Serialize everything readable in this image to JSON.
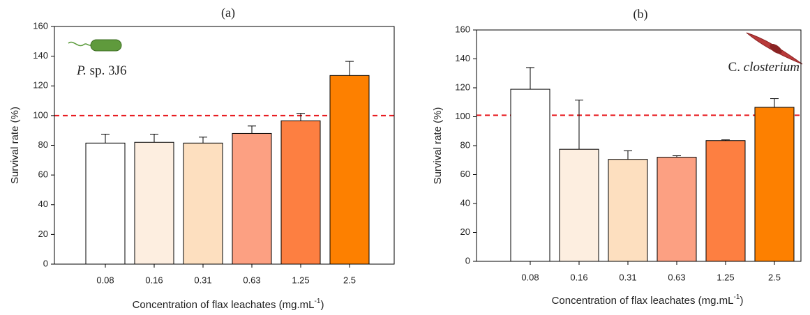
{
  "chart_data": [
    {
      "type": "bar",
      "title": "(a)",
      "annotation": [
        "P.",
        " sp. 3J6"
      ],
      "categories": [
        "0.08",
        "0.16",
        "0.31",
        "0.63",
        "1.25",
        "2.5"
      ],
      "values": [
        81.5,
        82,
        81.5,
        88,
        96.5,
        127
      ],
      "errors": [
        6,
        5.5,
        4,
        5,
        5,
        9.5
      ],
      "colors": [
        "#ffffff",
        "#fdeee0",
        "#fddfbf",
        "#fca082",
        "#fd7f41",
        "#fd8000"
      ],
      "ylim": [
        0,
        160
      ],
      "yticks": [
        0,
        20,
        40,
        60,
        80,
        100,
        120,
        140,
        160
      ],
      "reference_line": {
        "value": 100,
        "color": "#e8161b"
      },
      "x_label": {
        "text": "Concentration of flax leachates (mg.mL",
        "superscript": "-1",
        "suffix": ")"
      },
      "y_label": "Survival rate (%)"
    },
    {
      "type": "bar",
      "title": "(b)",
      "annotation": [
        "C. ",
        "closterium"
      ],
      "categories": [
        "0.08",
        "0.16",
        "0.31",
        "0.63",
        "1.25",
        "2.5"
      ],
      "values": [
        119,
        77.5,
        70.5,
        72,
        83.5,
        106.5
      ],
      "errors": [
        15,
        34,
        6,
        1,
        0.5,
        6
      ],
      "colors": [
        "#ffffff",
        "#fdeee0",
        "#fddfbf",
        "#fca082",
        "#fd7f41",
        "#fd8000"
      ],
      "ylim": [
        0,
        160
      ],
      "yticks": [
        0,
        20,
        40,
        60,
        80,
        100,
        120,
        140,
        160
      ],
      "reference_line": {
        "value": 101,
        "color": "#e8161b"
      },
      "x_label": {
        "text": "Concentration of flax leachates (mg.mL",
        "superscript": "-1",
        "suffix": ")"
      },
      "y_label": "Survival rate (%)"
    }
  ]
}
